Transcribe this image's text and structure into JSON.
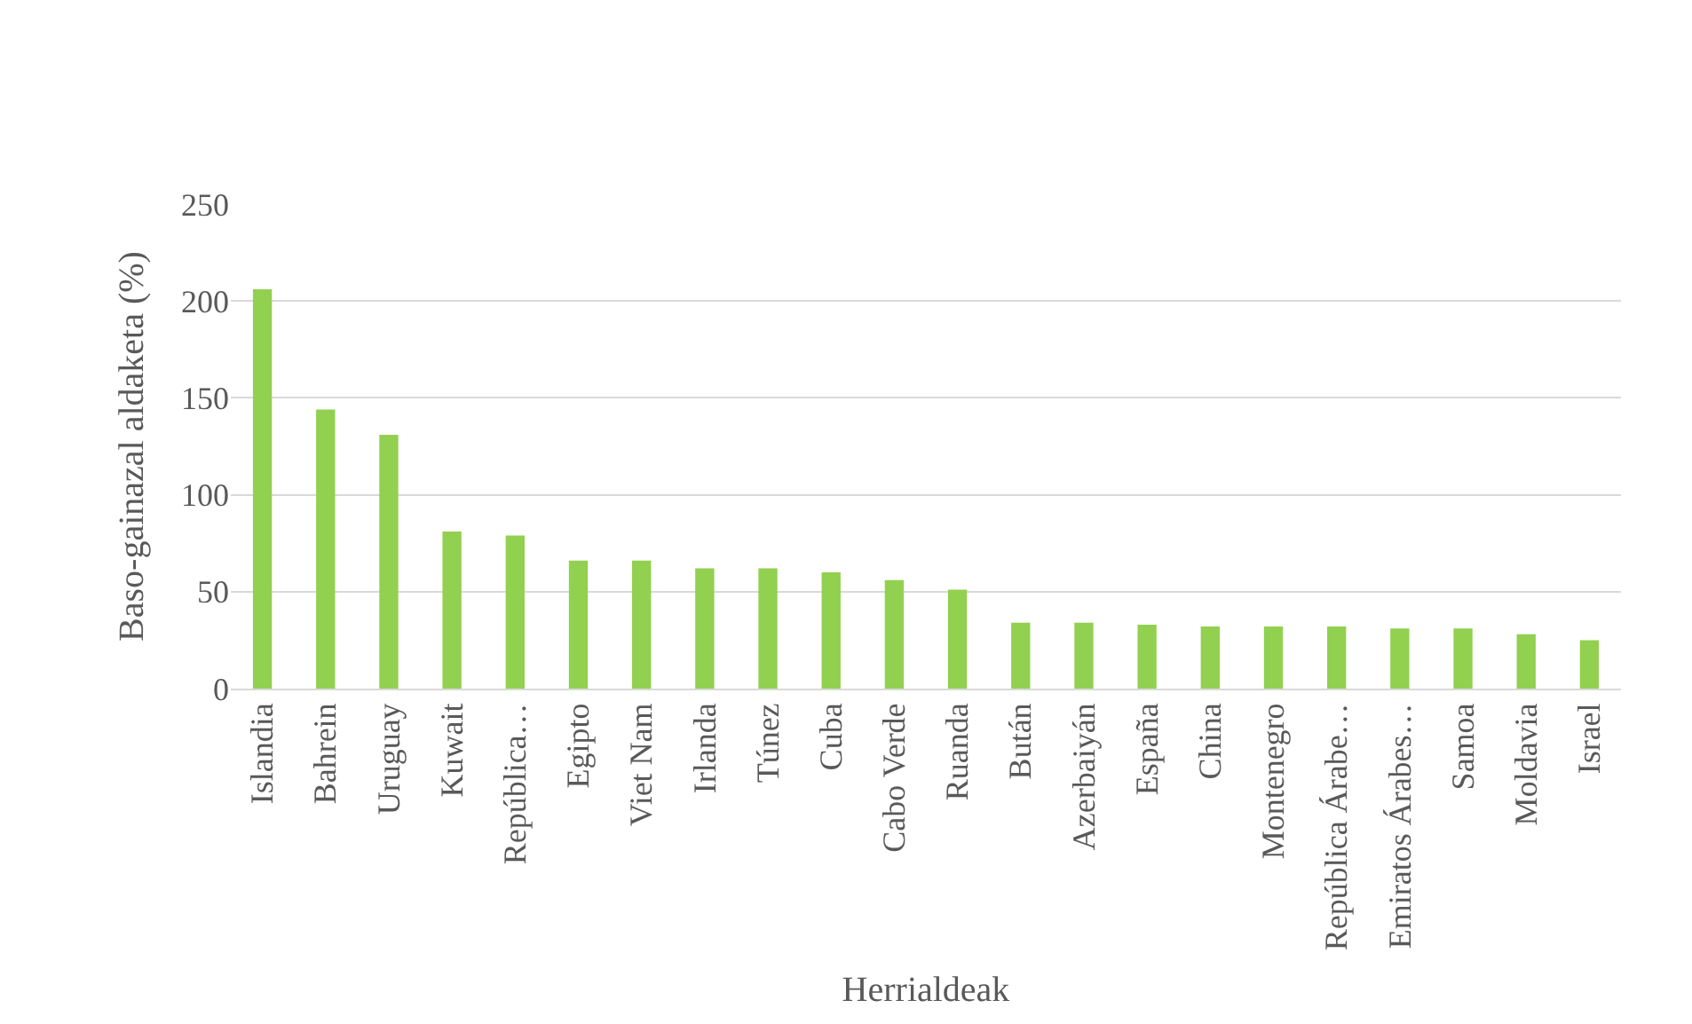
{
  "chart_data": {
    "type": "bar",
    "xlabel": "Herrialdeak",
    "ylabel": "Baso-gainazal aldaketa (%)",
    "categories": [
      "Islandia",
      "Bahrein",
      "Uruguay",
      "Kuwait",
      "República…",
      "Egipto",
      "Viet Nam",
      "Irlanda",
      "Túnez",
      "Cuba",
      "Cabo Verde",
      "Ruanda",
      "Bután",
      "Azerbaiyán",
      "España",
      "China",
      "Montenegro",
      "República Árabe…",
      "Emiratos Árabes…",
      "Samoa",
      "Moldavia",
      "Israel"
    ],
    "values": [
      206,
      144,
      131,
      81,
      79,
      66,
      66,
      62,
      62,
      60,
      56,
      51,
      34,
      34,
      33,
      32,
      32,
      32,
      31,
      31,
      28,
      25
    ],
    "color": "#92d050",
    "ylim": [
      0,
      250
    ],
    "yticks": [
      0,
      50,
      100,
      150,
      200,
      250
    ],
    "grid": "y"
  }
}
